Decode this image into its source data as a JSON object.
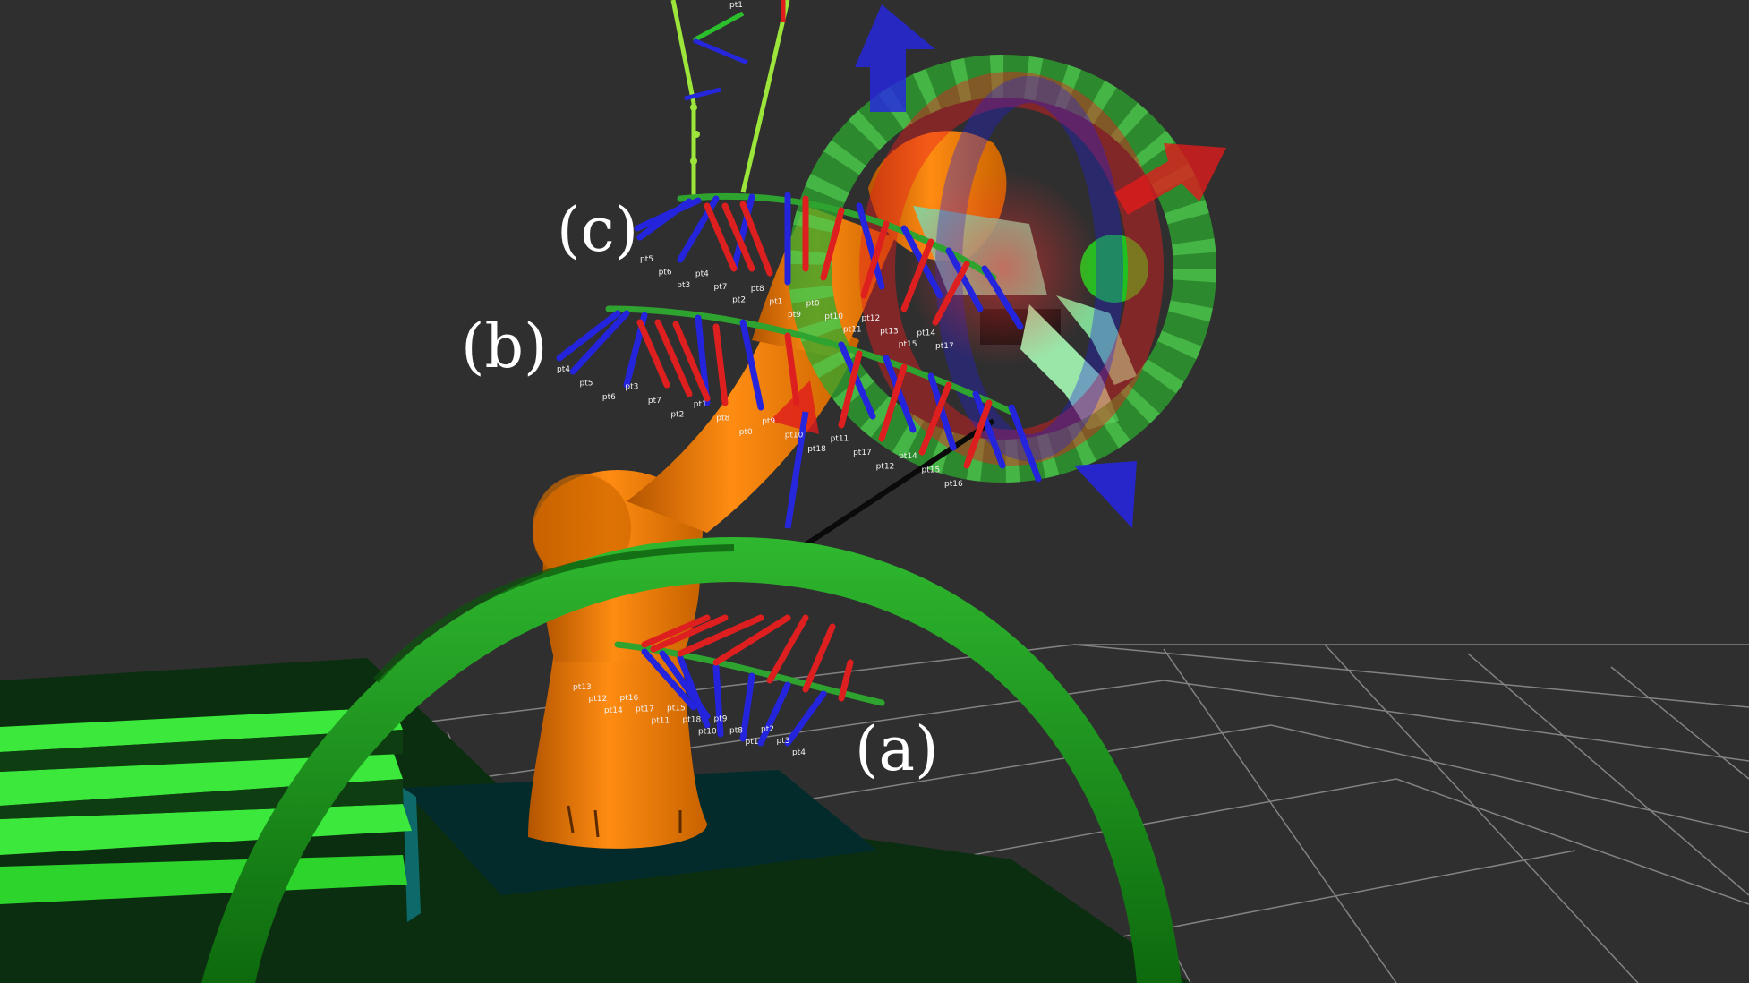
{
  "scene": {
    "background_color": "#2f2f2f",
    "grid_color": "#8c8c8c",
    "robot_color": "#f07f0b",
    "arch_color": "#1f9e1f",
    "marker_ring_color": "#2ea82e",
    "axis_colors": {
      "x": "#e21a1a",
      "y": "#22c822",
      "z": "#1a1ae8"
    },
    "icons": [
      "robot-arm-icon",
      "interactive-marker-icon",
      "grid-floor-icon"
    ]
  },
  "annotations": {
    "a": "(a)",
    "b": "(b)",
    "c": "(c)"
  },
  "frame_labels": {
    "upper_top": "pt1",
    "c_row": [
      "pt5",
      "pt6",
      "pt3",
      "pt4",
      "pt7",
      "pt2",
      "pt8",
      "pt1",
      "pt9",
      "pt0",
      "pt10",
      "pt11",
      "pt12",
      "pt13",
      "pt15",
      "pt14",
      "pt17"
    ],
    "b_row": [
      "pt4",
      "pt5",
      "pt6",
      "pt3",
      "pt7",
      "pt2",
      "pt1",
      "pt8",
      "pt0",
      "pt9",
      "pt10",
      "pt18",
      "pt11",
      "pt17",
      "pt12",
      "pt14",
      "pt15",
      "pt16"
    ],
    "a_row": [
      "pt13",
      "pt12",
      "pt14",
      "pt16",
      "pt17",
      "pt11",
      "pt15",
      "pt18",
      "pt10",
      "pt9",
      "pt8",
      "pt1",
      "pt2",
      "pt3",
      "pt4"
    ]
  }
}
